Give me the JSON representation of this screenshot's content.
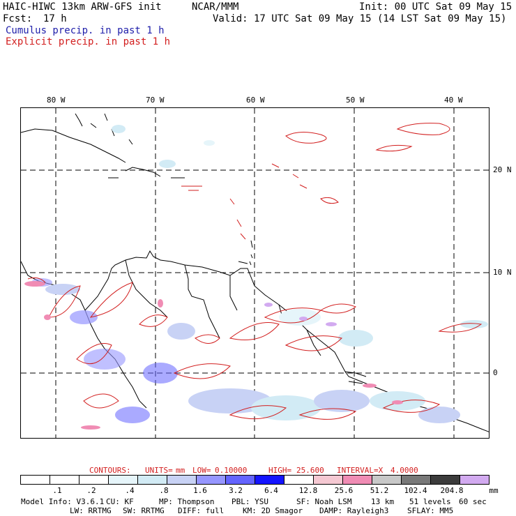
{
  "header": {
    "model": "HAIC-HIWC 13km ARW-GFS init",
    "org": "NCAR/MMM",
    "init": "Init: 00 UTC Sat 09 May 15",
    "fcst_label": "Fcst:",
    "fcst_value": "17 h",
    "valid": "Valid: 17 UTC Sat 09 May 15 (14 LST Sat 09 May 15)",
    "field_cumulus": "Cumulus precip. in past 1 h",
    "field_explicit": "Explicit precip. in past 1 h"
  },
  "map": {
    "lon_labels": [
      "80 W",
      "70 W",
      "60 W",
      "50 W",
      "40 W"
    ],
    "lat_labels": [
      "20 N",
      "10 N",
      "0"
    ]
  },
  "contours": {
    "prefix": "CONTOURS:",
    "units_label": "UNITS=",
    "units": "mm",
    "low_label": "LOW=",
    "low": "0.10000",
    "high_label": "HIGH=",
    "high": "25.600",
    "interval_label": "INTERVAL=X",
    "interval": "4.0000"
  },
  "scale": {
    "colors": [
      "#ffffff",
      "#ffffff",
      "#ffffff",
      "#e6f5fa",
      "#d2ebf5",
      "#c8d2f5",
      "#9696ff",
      "#6464ff",
      "#1414ff",
      "#ffffff",
      "#f5c8d2",
      "#f08cb4",
      "#c8c8c8",
      "#787878",
      "#3c3c3c",
      "#d2aaf0"
    ],
    "ticks": [
      ".1",
      ".2",
      ".4",
      ".8",
      "1.6",
      "3.2",
      "6.4",
      "12.8",
      "25.6",
      "51.2",
      "102.4",
      "204.8"
    ],
    "unit": "mm"
  },
  "model_info": {
    "line1": [
      "Model Info: V3.6.1",
      "CU: KF",
      "MP: Thompson",
      "PBL: YSU",
      "SF: Noah LSM",
      "13 km",
      "51 levels",
      "60 sec"
    ],
    "line2": [
      "LW: RRTMG",
      "SW: RRTMG",
      "DIFF: full",
      "KM: 2D Smagor",
      "DAMP: Rayleigh3",
      "SFLAY: MM5"
    ]
  }
}
